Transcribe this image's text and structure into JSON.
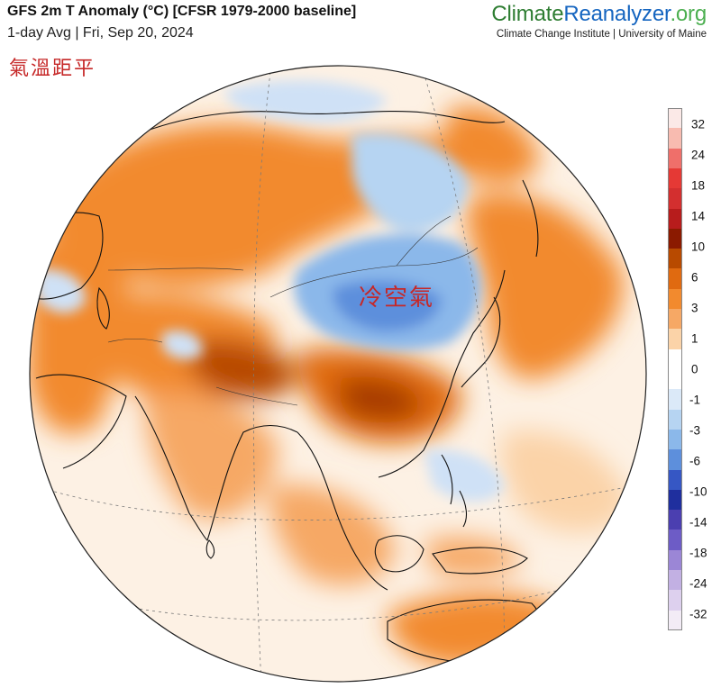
{
  "header": {
    "title": "GFS 2m T Anomaly (°C) [CFSR 1979-2000 baseline]",
    "subtitle": "1-day Avg | Fri, Sep 20, 2024"
  },
  "brand": {
    "name_part1": "Climate",
    "name_part2": "Reanalyzer",
    "name_part3": ".org",
    "tagline": "Climate Change Institute | University of Maine",
    "colors": {
      "part1": "#2e7d32",
      "part2": "#1565c0",
      "part3": "#4caf50"
    }
  },
  "annotations": {
    "warm_anomaly": "氣溫距平",
    "cold_air": "冷空氣"
  },
  "legend": {
    "colors": [
      "#fbe9e7",
      "#f8bbb0",
      "#ef6f6a",
      "#e53935",
      "#d32f2f",
      "#b71c1c",
      "#8b1a00",
      "#b84a00",
      "#e06a10",
      "#f28a2e",
      "#f6a865",
      "#fbd3a8",
      "#ffffff",
      "#ffffff",
      "#dbe9f8",
      "#b6d4f2",
      "#8bb8ea",
      "#5d8fdc",
      "#3657c4",
      "#1f2f9e",
      "#4b3fb0",
      "#6d5cc6",
      "#9b86d6",
      "#c2b0e3",
      "#ddd0ee",
      "#f3ecf6"
    ],
    "tick_labels": [
      "32",
      "24",
      "18",
      "14",
      "10",
      "6",
      "3",
      "1",
      "0",
      "-1",
      "-3",
      "-6",
      "-10",
      "-14",
      "-18",
      "-24",
      "-32"
    ]
  },
  "map": {
    "palette": {
      "ocean_base": "#fdf1e4",
      "warm_light": "#fbd3a8",
      "warm": "#f28a2e",
      "warm_strong": "#e06a10",
      "hot": "#a63a00",
      "cool_light": "#cfe1f6",
      "cool": "#8bb8ea",
      "cold": "#5d8fdc",
      "coast": "#111111",
      "grid": "#7a7a7a"
    }
  }
}
